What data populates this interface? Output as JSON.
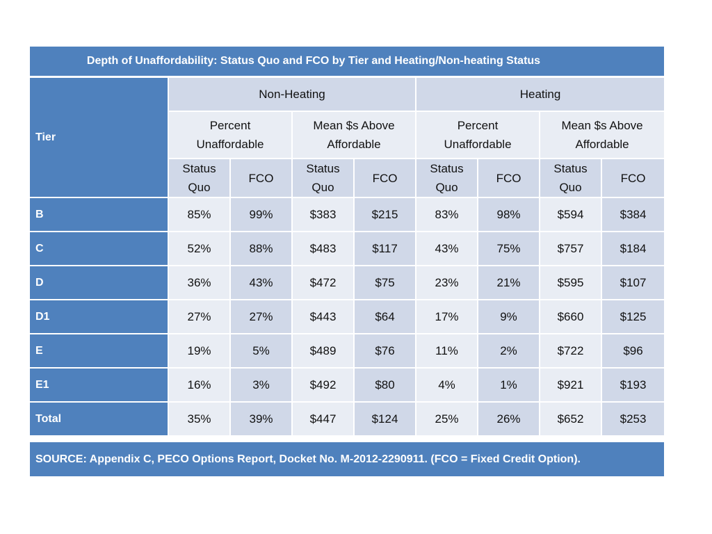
{
  "title": "Depth of Unaffordability: Status Quo and FCO by Tier and Heating/Non-heating Status",
  "header": {
    "tier": "Tier",
    "groups": [
      "Non-Heating",
      "Heating"
    ],
    "subgroups": [
      {
        "line1": "Percent",
        "line2": "Unaffordable"
      },
      {
        "line1": "Mean $s Above",
        "line2": "Affordable"
      },
      {
        "line1": "Percent",
        "line2": "Unaffordable"
      },
      {
        "line1": "Mean $s Above",
        "line2": "Affordable"
      }
    ],
    "status_quo": {
      "line1": "Status",
      "line2": "Quo"
    },
    "fco": "FCO"
  },
  "rows": [
    {
      "tier": "B",
      "values": [
        "85%",
        "99%",
        "$383",
        "$215",
        "83%",
        "98%",
        "$594",
        "$384"
      ]
    },
    {
      "tier": "C",
      "values": [
        "52%",
        "88%",
        "$483",
        "$117",
        "43%",
        "75%",
        "$757",
        "$184"
      ]
    },
    {
      "tier": "D",
      "values": [
        "36%",
        "43%",
        "$472",
        "$75",
        "23%",
        "21%",
        "$595",
        "$107"
      ]
    },
    {
      "tier": "D1",
      "values": [
        "27%",
        "27%",
        "$443",
        "$64",
        "17%",
        "9%",
        "$660",
        "$125"
      ]
    },
    {
      "tier": "E",
      "values": [
        "19%",
        "5%",
        "$489",
        "$76",
        "11%",
        "2%",
        "$722",
        "$96"
      ]
    },
    {
      "tier": "E1",
      "values": [
        "16%",
        "3%",
        "$492",
        "$80",
        "4%",
        "1%",
        "$921",
        "$193"
      ]
    },
    {
      "tier": "Total",
      "values": [
        "35%",
        "39%",
        "$447",
        "$124",
        "25%",
        "26%",
        "$652",
        "$253"
      ]
    }
  ],
  "source": "SOURCE: Appendix C, PECO Options Report, Docket No. M-2012-2290911. (FCO = Fixed Credit Option)."
}
